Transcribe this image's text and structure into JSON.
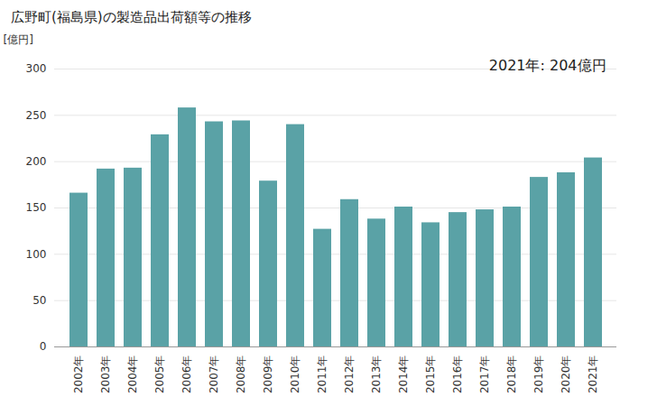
{
  "chart_data": {
    "type": "bar",
    "title": "広野町(福島県)の製造品出荷額等の推移",
    "y_label": "[億円]",
    "annotation": "2021年: 204億円",
    "categories": [
      "2002年",
      "2003年",
      "2004年",
      "2005年",
      "2006年",
      "2007年",
      "2008年",
      "2009年",
      "2010年",
      "2011年",
      "2012年",
      "2013年",
      "2014年",
      "2015年",
      "2016年",
      "2017年",
      "2018年",
      "2019年",
      "2020年",
      "2021年"
    ],
    "values": [
      166,
      192,
      193,
      229,
      258,
      243,
      244,
      179,
      240,
      127,
      159,
      138,
      151,
      134,
      145,
      148,
      151,
      183,
      188,
      204
    ],
    "color": "#5aa2a6",
    "ylim": [
      0,
      300
    ],
    "yticks": [
      0,
      50,
      100,
      150,
      200,
      250,
      300
    ],
    "grid": true
  }
}
